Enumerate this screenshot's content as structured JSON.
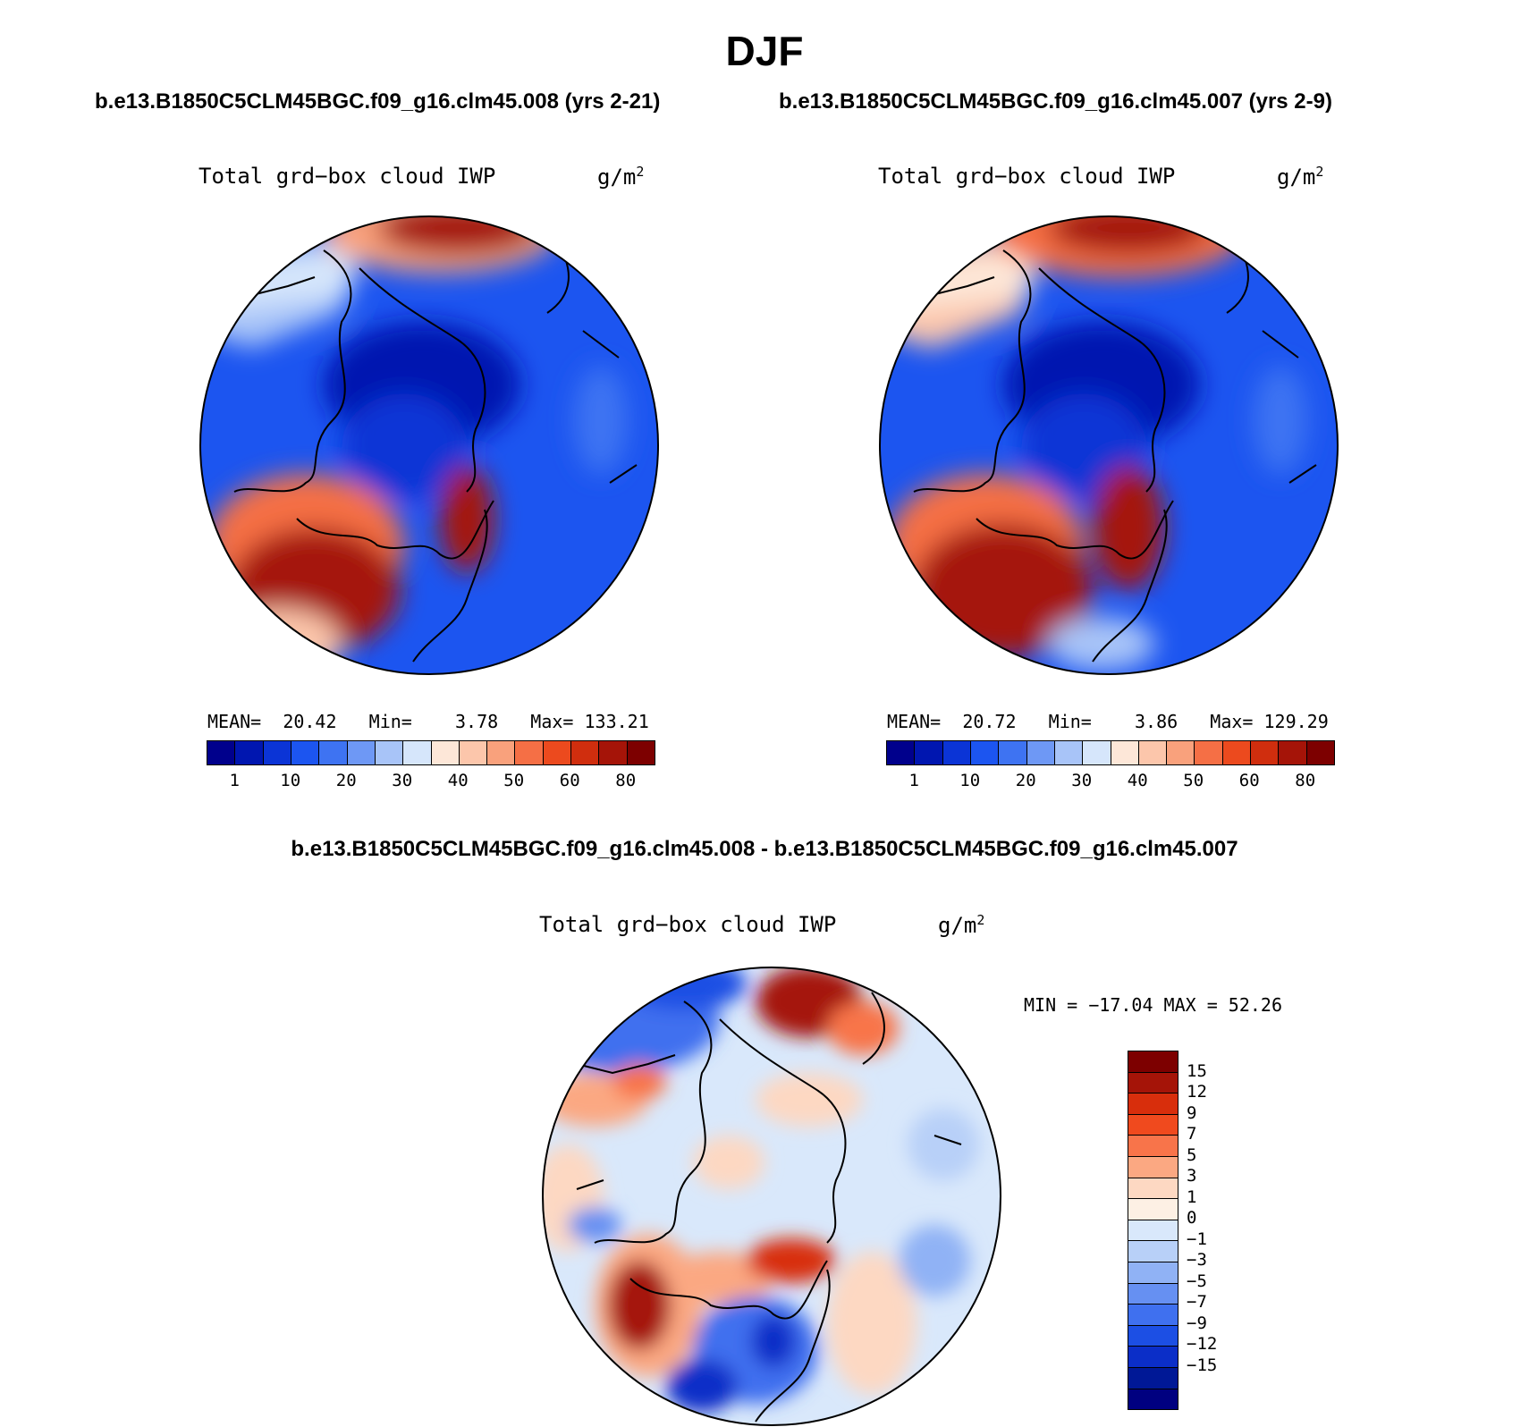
{
  "title": "DJF",
  "panels": [
    {
      "case_title": "b.e13.B1850C5CLM45BGC.f09_g16.clm45.008 (yrs 2-21)",
      "variable": "Total grd−box cloud IWP",
      "units": "g/m",
      "units_exp": "2",
      "stats": {
        "mean_label": "MEAN=",
        "mean": "20.42",
        "min_label": "Min=",
        "min": "3.78",
        "max_label": "Max=",
        "max": "133.21"
      }
    },
    {
      "case_title": "b.e13.B1850C5CLM45BGC.f09_g16.clm45.007 (yrs 2-9)",
      "variable": "Total grd−box cloud IWP",
      "units": "g/m",
      "units_exp": "2",
      "stats": {
        "mean_label": "MEAN=",
        "mean": "20.72",
        "min_label": "Min=",
        "min": "3.86",
        "max_label": "Max=",
        "max": "129.29"
      }
    }
  ],
  "colorbar_abs": {
    "colors": [
      "#00008c",
      "#0016b0",
      "#0b34d6",
      "#1c55f0",
      "#3e73f2",
      "#6e98f5",
      "#a8c4f8",
      "#d6e6fb",
      "#fde7d8",
      "#fcc6ab",
      "#f9a17c",
      "#f56f45",
      "#ec4a1e",
      "#d02e0e",
      "#a51408",
      "#7d0000"
    ],
    "labels": [
      "1",
      "10",
      "20",
      "30",
      "40",
      "50",
      "60",
      "80"
    ]
  },
  "diff": {
    "title": "b.e13.B1850C5CLM45BGC.f09_g16.clm45.008 - b.e13.B1850C5CLM45BGC.f09_g16.clm45.007",
    "variable": "Total grd−box cloud IWP",
    "units": "g/m",
    "units_exp": "2",
    "minmax": "MIN = −17.04 MAX =  52.26",
    "colors": [
      "#7d0000",
      "#a51408",
      "#d82e0c",
      "#f04a1e",
      "#f8744a",
      "#fba882",
      "#fdd8c2",
      "#fdf0e4",
      "#d9e8fb",
      "#b8d0f8",
      "#90b2f5",
      "#6690f2",
      "#3f70ef",
      "#1c4fe4",
      "#0b2ec8",
      "#001896",
      "#000080"
    ],
    "labels": [
      "15",
      "12",
      "9",
      "7",
      "5",
      "3",
      "1",
      "0",
      "−1",
      "−3",
      "−5",
      "−7",
      "−9",
      "−12",
      "−15"
    ]
  }
}
